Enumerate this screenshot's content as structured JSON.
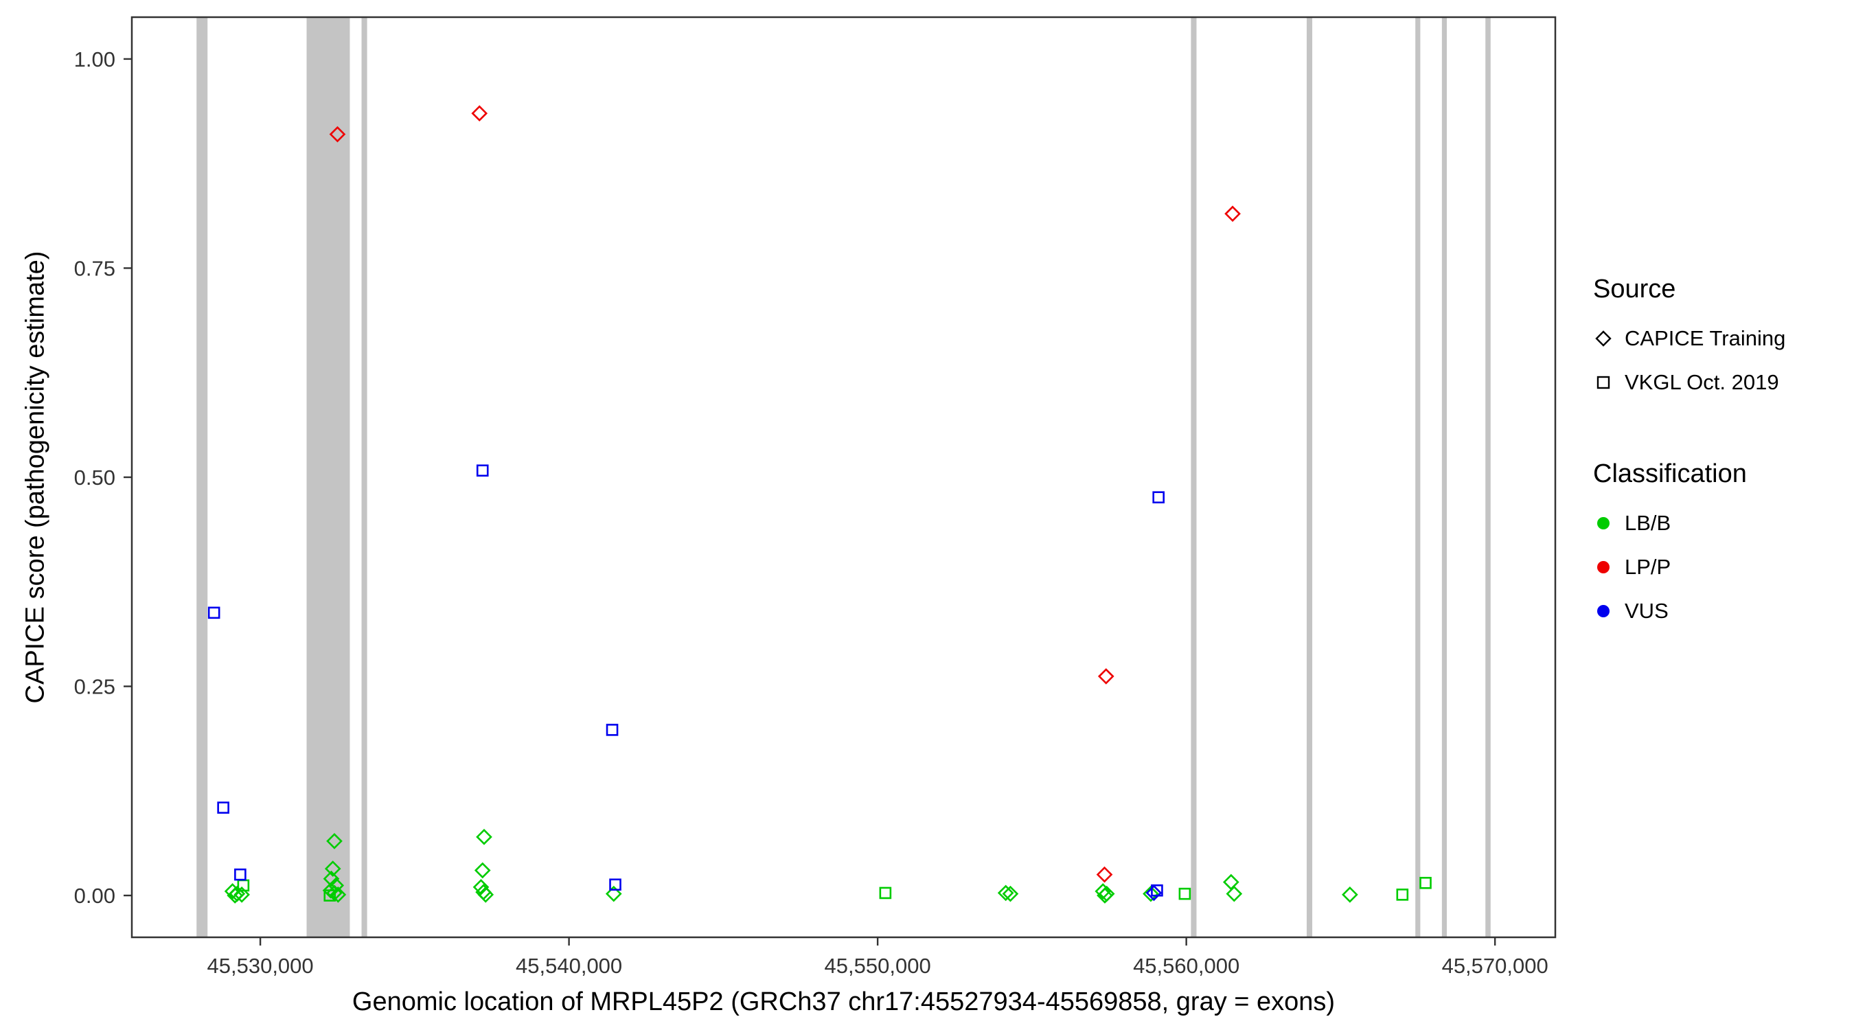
{
  "figure": {
    "background": "#ffffff"
  },
  "legend": {
    "source": {
      "title": "Source",
      "items": [
        {
          "label": "CAPICE Training",
          "shape": "diamond"
        },
        {
          "label": "VKGL Oct. 2019",
          "shape": "square"
        }
      ]
    },
    "classification": {
      "title": "Classification",
      "items": [
        {
          "label": "LB/B",
          "color": "#00cc00"
        },
        {
          "label": "LP/P",
          "color": "#ee0000"
        },
        {
          "label": "VUS",
          "color": "#0000ee"
        }
      ]
    }
  },
  "chart_data": {
    "type": "scatter",
    "title": "",
    "xlabel": "Genomic location of MRPL45P2 (GRCh37 chr17:45527934-45569858, gray = exons)",
    "ylabel": "CAPICE score (pathogenicity estimate)",
    "xlim": [
      45525838,
      45571954
    ],
    "ylim": [
      -0.05,
      1.05
    ],
    "x_ticks": [
      45530000,
      45540000,
      45550000,
      45560000,
      45570000
    ],
    "x_tick_labels": [
      "45,530,000",
      "45,540,000",
      "45,550,000",
      "45,560,000",
      "45,570,000"
    ],
    "y_ticks": [
      0,
      0.25,
      0.5,
      0.75,
      1
    ],
    "y_tick_labels": [
      "0.00",
      "0.25",
      "0.50",
      "0.75",
      "1.00"
    ],
    "grid": false,
    "legend_position": "right",
    "exon_color": "#c4c4c4",
    "exons": [
      [
        45527934,
        45528290
      ],
      [
        45531500,
        45532900
      ],
      [
        45533280,
        45533460
      ],
      [
        45560150,
        45560330
      ],
      [
        45563900,
        45564080
      ],
      [
        45567420,
        45567580
      ],
      [
        45568280,
        45568440
      ],
      [
        45569690,
        45569858
      ]
    ],
    "colors": {
      "LB/B": "#00cc00",
      "LP/P": "#ee0000",
      "VUS": "#0000ee"
    },
    "shapes": {
      "CAPICE Training": "diamond",
      "VKGL Oct. 2019": "square"
    },
    "points": [
      {
        "x": 45529100,
        "y": 0.005,
        "source": "CAPICE Training",
        "classification": "LB/B"
      },
      {
        "x": 45529250,
        "y": 0.002,
        "source": "CAPICE Training",
        "classification": "LB/B"
      },
      {
        "x": 45529400,
        "y": 0.001,
        "source": "CAPICE Training",
        "classification": "LB/B"
      },
      {
        "x": 45529180,
        "y": 0.0,
        "source": "CAPICE Training",
        "classification": "LB/B"
      },
      {
        "x": 45529450,
        "y": 0.012,
        "source": "VKGL Oct. 2019",
        "classification": "LB/B"
      },
      {
        "x": 45532400,
        "y": 0.065,
        "source": "CAPICE Training",
        "classification": "LB/B"
      },
      {
        "x": 45532350,
        "y": 0.032,
        "source": "CAPICE Training",
        "classification": "LB/B"
      },
      {
        "x": 45532300,
        "y": 0.02,
        "source": "CAPICE Training",
        "classification": "LB/B"
      },
      {
        "x": 45532450,
        "y": 0.012,
        "source": "CAPICE Training",
        "classification": "LB/B"
      },
      {
        "x": 45532280,
        "y": 0.006,
        "source": "CAPICE Training",
        "classification": "LB/B"
      },
      {
        "x": 45532400,
        "y": 0.003,
        "source": "CAPICE Training",
        "classification": "LB/B"
      },
      {
        "x": 45532520,
        "y": 0.001,
        "source": "CAPICE Training",
        "classification": "LB/B"
      },
      {
        "x": 45532250,
        "y": 0.0,
        "source": "VKGL Oct. 2019",
        "classification": "LB/B"
      },
      {
        "x": 45537250,
        "y": 0.07,
        "source": "CAPICE Training",
        "classification": "LB/B"
      },
      {
        "x": 45537200,
        "y": 0.03,
        "source": "CAPICE Training",
        "classification": "LB/B"
      },
      {
        "x": 45537150,
        "y": 0.01,
        "source": "CAPICE Training",
        "classification": "LB/B"
      },
      {
        "x": 45537230,
        "y": 0.004,
        "source": "CAPICE Training",
        "classification": "LB/B"
      },
      {
        "x": 45537300,
        "y": 0.001,
        "source": "CAPICE Training",
        "classification": "LB/B"
      },
      {
        "x": 45541450,
        "y": 0.002,
        "source": "CAPICE Training",
        "classification": "LB/B"
      },
      {
        "x": 45550250,
        "y": 0.003,
        "source": "VKGL Oct. 2019",
        "classification": "LB/B"
      },
      {
        "x": 45554150,
        "y": 0.003,
        "source": "CAPICE Training",
        "classification": "LB/B"
      },
      {
        "x": 45554300,
        "y": 0.002,
        "source": "CAPICE Training",
        "classification": "LB/B"
      },
      {
        "x": 45557300,
        "y": 0.005,
        "source": "CAPICE Training",
        "classification": "LB/B"
      },
      {
        "x": 45557420,
        "y": 0.002,
        "source": "CAPICE Training",
        "classification": "LB/B"
      },
      {
        "x": 45557360,
        "y": 0.0,
        "source": "CAPICE Training",
        "classification": "LB/B"
      },
      {
        "x": 45558850,
        "y": 0.002,
        "source": "CAPICE Training",
        "classification": "LB/B"
      },
      {
        "x": 45559950,
        "y": 0.002,
        "source": "VKGL Oct. 2019",
        "classification": "LB/B"
      },
      {
        "x": 45561450,
        "y": 0.016,
        "source": "CAPICE Training",
        "classification": "LB/B"
      },
      {
        "x": 45561550,
        "y": 0.002,
        "source": "CAPICE Training",
        "classification": "LB/B"
      },
      {
        "x": 45565300,
        "y": 0.001,
        "source": "CAPICE Training",
        "classification": "LB/B"
      },
      {
        "x": 45567000,
        "y": 0.001,
        "source": "VKGL Oct. 2019",
        "classification": "LB/B"
      },
      {
        "x": 45567750,
        "y": 0.015,
        "source": "VKGL Oct. 2019",
        "classification": "LB/B"
      },
      {
        "x": 45528500,
        "y": 0.338,
        "source": "VKGL Oct. 2019",
        "classification": "VUS"
      },
      {
        "x": 45528800,
        "y": 0.105,
        "source": "VKGL Oct. 2019",
        "classification": "VUS"
      },
      {
        "x": 45529350,
        "y": 0.025,
        "source": "VKGL Oct. 2019",
        "classification": "VUS"
      },
      {
        "x": 45537200,
        "y": 0.508,
        "source": "VKGL Oct. 2019",
        "classification": "VUS"
      },
      {
        "x": 45541400,
        "y": 0.198,
        "source": "VKGL Oct. 2019",
        "classification": "VUS"
      },
      {
        "x": 45541500,
        "y": 0.013,
        "source": "VKGL Oct. 2019",
        "classification": "VUS"
      },
      {
        "x": 45559100,
        "y": 0.476,
        "source": "VKGL Oct. 2019",
        "classification": "VUS"
      },
      {
        "x": 45559050,
        "y": 0.006,
        "source": "VKGL Oct. 2019",
        "classification": "VUS"
      },
      {
        "x": 45558950,
        "y": 0.003,
        "source": "CAPICE Training",
        "classification": "VUS"
      },
      {
        "x": 45532500,
        "y": 0.91,
        "source": "CAPICE Training",
        "classification": "LP/P"
      },
      {
        "x": 45537100,
        "y": 0.935,
        "source": "CAPICE Training",
        "classification": "LP/P"
      },
      {
        "x": 45561500,
        "y": 0.815,
        "source": "CAPICE Training",
        "classification": "LP/P"
      },
      {
        "x": 45557400,
        "y": 0.262,
        "source": "CAPICE Training",
        "classification": "LP/P"
      },
      {
        "x": 45557350,
        "y": 0.025,
        "source": "CAPICE Training",
        "classification": "LP/P"
      }
    ]
  }
}
